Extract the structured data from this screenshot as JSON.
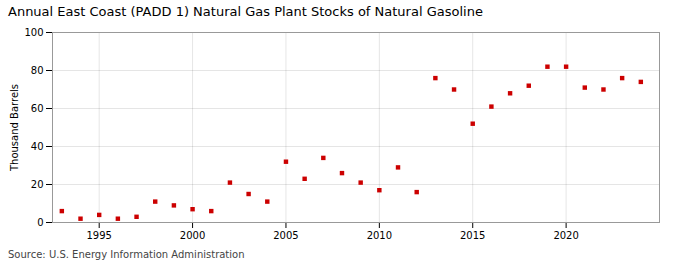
{
  "chart_data": {
    "type": "scatter",
    "title": "Annual East Coast (PADD 1) Natural Gas Plant Stocks of Natural Gasoline",
    "ylabel": "Thousand Barrels",
    "source": "Source: U.S. Energy Information Administration",
    "x": [
      1993,
      1994,
      1995,
      1996,
      1997,
      1998,
      1999,
      2000,
      2001,
      2002,
      2003,
      2004,
      2005,
      2006,
      2007,
      2008,
      2009,
      2010,
      2011,
      2012,
      2013,
      2014,
      2015,
      2016,
      2017,
      2018,
      2019,
      2020,
      2021,
      2022,
      2023,
      2024
    ],
    "values": [
      6,
      2,
      4,
      2,
      3,
      11,
      9,
      7,
      6,
      21,
      15,
      11,
      32,
      23,
      34,
      26,
      21,
      17,
      29,
      16,
      76,
      70,
      52,
      61,
      68,
      72,
      82,
      82,
      71,
      70,
      76,
      74
    ],
    "color": "#cc0000",
    "marker": "square",
    "xlim": [
      1992.5,
      2025
    ],
    "xticks": [
      1995,
      2000,
      2005,
      2010,
      2015,
      2020
    ],
    "ylim": [
      0,
      100
    ],
    "yticks": [
      0,
      20,
      40,
      60,
      80,
      100
    ],
    "grid": true
  }
}
